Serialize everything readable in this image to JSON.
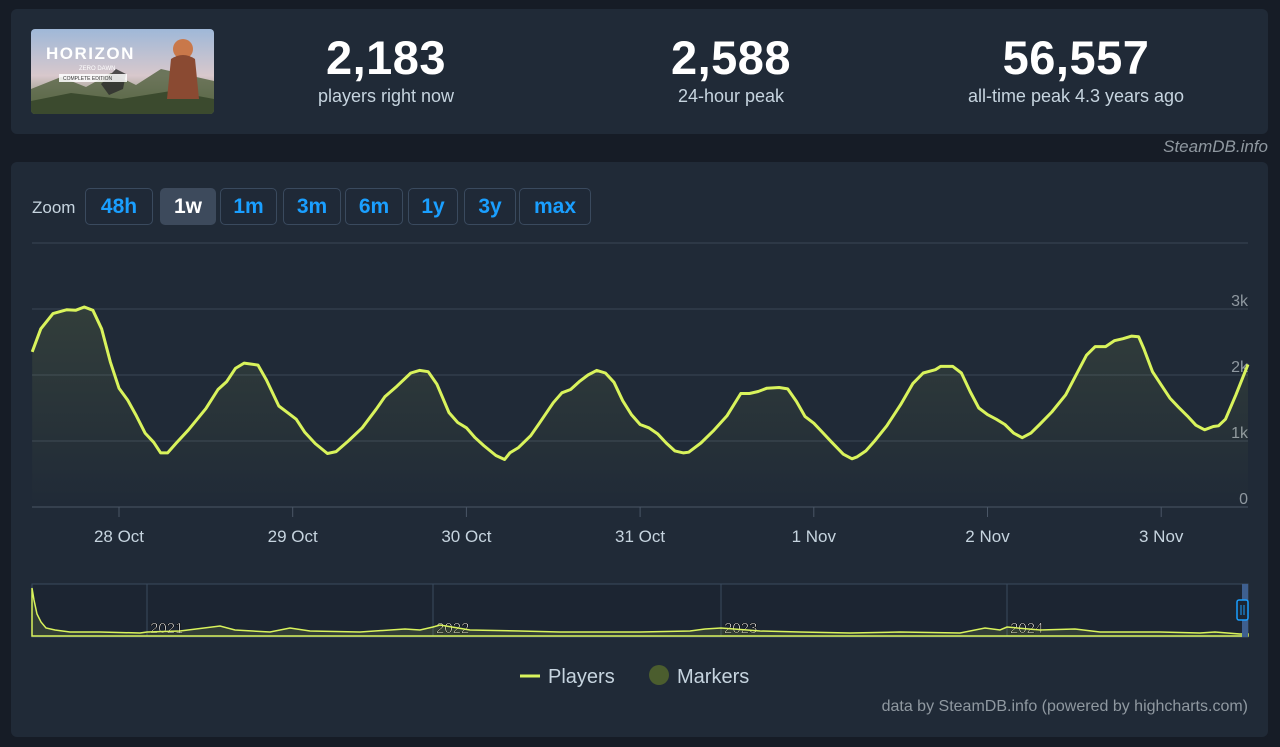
{
  "game": {
    "logo_icon": "horizon-zero-dawn-logo",
    "logo_text": "HORIZON",
    "logo_sub": "ZERO DAWN",
    "logo_edition": "COMPLETE EDITION"
  },
  "stats": [
    {
      "value": "2,183",
      "label": "players right now"
    },
    {
      "value": "2,588",
      "label": "24-hour peak"
    },
    {
      "value": "56,557",
      "label": "all-time peak 4.3 years ago"
    }
  ],
  "credit_top": "SteamDB.info",
  "zoom": {
    "label": "Zoom",
    "buttons": [
      "48h",
      "1w",
      "1m",
      "3m",
      "6m",
      "1y",
      "3y",
      "max"
    ],
    "active": "1w"
  },
  "chart_data": {
    "type": "line",
    "x_unit": "days",
    "x_ticks": [
      "28 Oct",
      "29 Oct",
      "30 Oct",
      "31 Oct",
      "1 Nov",
      "2 Nov",
      "3 Nov"
    ],
    "y_ticks": [
      "0",
      "1k",
      "2k",
      "3k"
    ],
    "ylim": [
      0,
      3000
    ],
    "grid": true,
    "series": [
      {
        "name": "Players",
        "color": "#d9f35c",
        "points": [
          [
            -0.5,
            2350
          ],
          [
            -0.45,
            2700
          ],
          [
            -0.38,
            2930
          ],
          [
            -0.3,
            2990
          ],
          [
            -0.25,
            2980
          ],
          [
            -0.2,
            3030
          ],
          [
            -0.15,
            2980
          ],
          [
            -0.1,
            2700
          ],
          [
            -0.05,
            2200
          ],
          [
            0.0,
            1800
          ],
          [
            0.05,
            1620
          ],
          [
            0.1,
            1380
          ],
          [
            0.15,
            1120
          ],
          [
            0.2,
            980
          ],
          [
            0.24,
            820
          ],
          [
            0.28,
            820
          ],
          [
            0.33,
            970
          ],
          [
            0.4,
            1170
          ],
          [
            0.5,
            1490
          ],
          [
            0.57,
            1780
          ],
          [
            0.62,
            1900
          ],
          [
            0.67,
            2100
          ],
          [
            0.72,
            2180
          ],
          [
            0.8,
            2150
          ],
          [
            0.85,
            1920
          ],
          [
            0.92,
            1530
          ],
          [
            0.97,
            1430
          ],
          [
            1.02,
            1330
          ],
          [
            1.07,
            1130
          ],
          [
            1.13,
            960
          ],
          [
            1.2,
            810
          ],
          [
            1.25,
            840
          ],
          [
            1.32,
            1000
          ],
          [
            1.4,
            1200
          ],
          [
            1.48,
            1480
          ],
          [
            1.53,
            1670
          ],
          [
            1.6,
            1830
          ],
          [
            1.68,
            2030
          ],
          [
            1.73,
            2070
          ],
          [
            1.78,
            2050
          ],
          [
            1.83,
            1860
          ],
          [
            1.9,
            1430
          ],
          [
            1.95,
            1280
          ],
          [
            2.0,
            1200
          ],
          [
            2.05,
            1050
          ],
          [
            2.1,
            930
          ],
          [
            2.17,
            780
          ],
          [
            2.22,
            720
          ],
          [
            2.25,
            820
          ],
          [
            2.3,
            900
          ],
          [
            2.37,
            1080
          ],
          [
            2.42,
            1270
          ],
          [
            2.5,
            1580
          ],
          [
            2.55,
            1730
          ],
          [
            2.6,
            1780
          ],
          [
            2.65,
            1900
          ],
          [
            2.7,
            2000
          ],
          [
            2.75,
            2070
          ],
          [
            2.8,
            2030
          ],
          [
            2.85,
            1890
          ],
          [
            2.9,
            1610
          ],
          [
            2.95,
            1400
          ],
          [
            3.0,
            1250
          ],
          [
            3.05,
            1200
          ],
          [
            3.1,
            1110
          ],
          [
            3.15,
            970
          ],
          [
            3.2,
            850
          ],
          [
            3.25,
            820
          ],
          [
            3.28,
            830
          ],
          [
            3.35,
            970
          ],
          [
            3.42,
            1150
          ],
          [
            3.5,
            1380
          ],
          [
            3.58,
            1720
          ],
          [
            3.63,
            1720
          ],
          [
            3.68,
            1750
          ],
          [
            3.73,
            1800
          ],
          [
            3.8,
            1810
          ],
          [
            3.85,
            1790
          ],
          [
            3.9,
            1600
          ],
          [
            3.95,
            1370
          ],
          [
            4.0,
            1270
          ],
          [
            4.05,
            1130
          ],
          [
            4.1,
            990
          ],
          [
            4.17,
            800
          ],
          [
            4.22,
            730
          ],
          [
            4.25,
            760
          ],
          [
            4.3,
            850
          ],
          [
            4.35,
            1000
          ],
          [
            4.42,
            1230
          ],
          [
            4.5,
            1550
          ],
          [
            4.57,
            1870
          ],
          [
            4.63,
            2030
          ],
          [
            4.7,
            2080
          ],
          [
            4.73,
            2130
          ],
          [
            4.8,
            2130
          ],
          [
            4.85,
            2030
          ],
          [
            4.9,
            1750
          ],
          [
            4.95,
            1500
          ],
          [
            5.0,
            1400
          ],
          [
            5.05,
            1330
          ],
          [
            5.1,
            1250
          ],
          [
            5.15,
            1120
          ],
          [
            5.2,
            1050
          ],
          [
            5.25,
            1120
          ],
          [
            5.3,
            1250
          ],
          [
            5.37,
            1440
          ],
          [
            5.45,
            1700
          ],
          [
            5.52,
            2050
          ],
          [
            5.57,
            2300
          ],
          [
            5.62,
            2430
          ],
          [
            5.68,
            2430
          ],
          [
            5.73,
            2520
          ],
          [
            5.78,
            2550
          ],
          [
            5.83,
            2590
          ],
          [
            5.87,
            2580
          ],
          [
            5.9,
            2400
          ],
          [
            5.95,
            2050
          ],
          [
            6.0,
            1850
          ],
          [
            6.05,
            1650
          ],
          [
            6.1,
            1510
          ],
          [
            6.15,
            1380
          ],
          [
            6.2,
            1240
          ],
          [
            6.25,
            1170
          ],
          [
            6.3,
            1220
          ],
          [
            6.33,
            1230
          ],
          [
            6.37,
            1330
          ],
          [
            6.43,
            1700
          ],
          [
            6.5,
            2160
          ]
        ]
      }
    ],
    "legend": [
      {
        "name": "Players",
        "color": "#d9f35c"
      },
      {
        "name": "Markers",
        "color": "#4b5d2e"
      }
    ],
    "navigator": {
      "years": [
        "2021",
        "2022",
        "2023",
        "2024"
      ],
      "note": "player count overview since launch, spike at start"
    }
  },
  "credit_bottom": "data by SteamDB.info (powered by highcharts.com)"
}
